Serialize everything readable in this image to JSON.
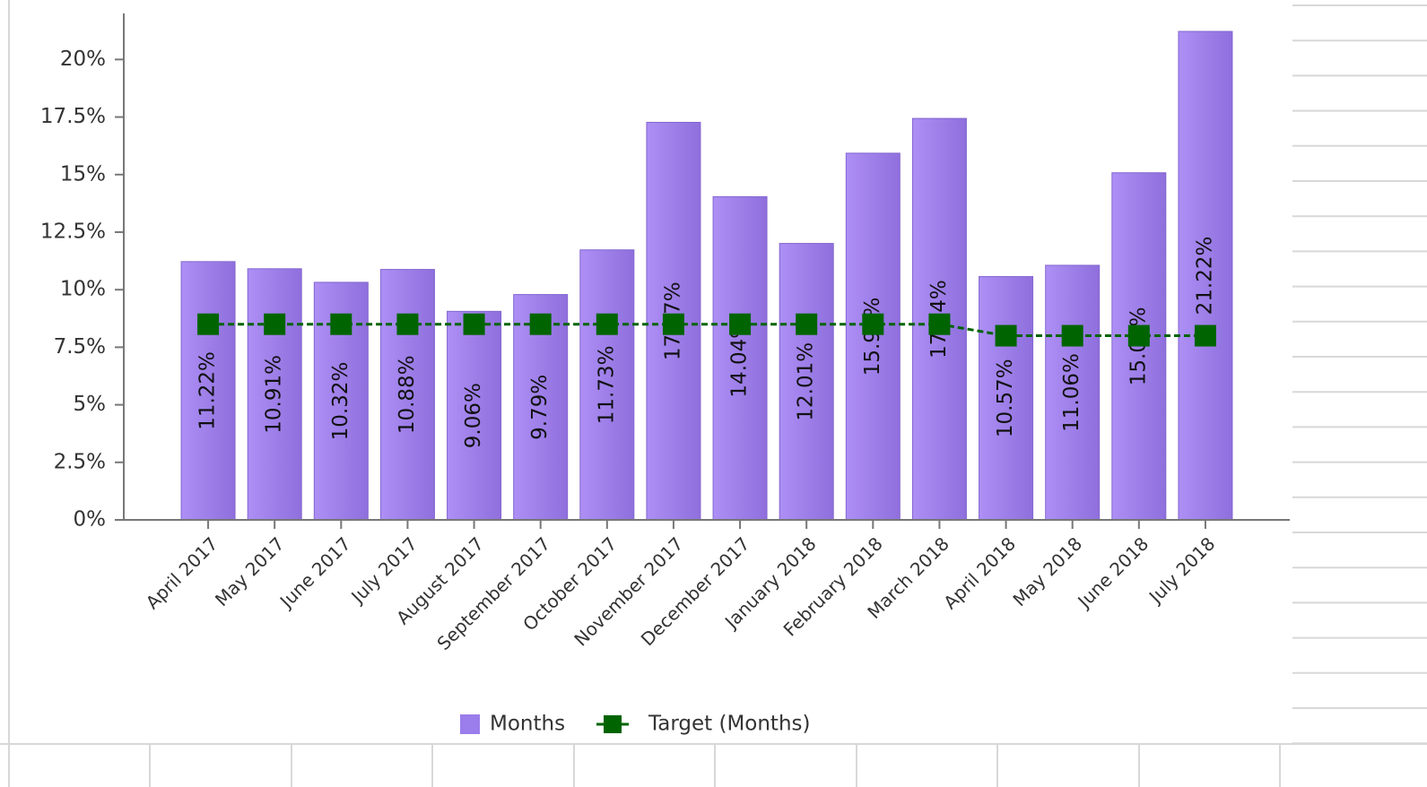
{
  "chart_data": {
    "type": "bar",
    "categories": [
      "April 2017",
      "May 2017",
      "June 2017",
      "July 2017",
      "August 2017",
      "September 2017",
      "October 2017",
      "November 2017",
      "December 2017",
      "January 2018",
      "February 2018",
      "March 2018",
      "April 2018",
      "May 2018",
      "June 2018",
      "July 2018"
    ],
    "series": [
      {
        "name": "Months",
        "type": "bar",
        "color": "#9b7deb",
        "values": [
          11.22,
          10.91,
          10.32,
          10.88,
          9.06,
          9.79,
          11.73,
          17.27,
          14.04,
          12.01,
          15.93,
          17.44,
          10.57,
          11.06,
          15.08,
          21.22
        ],
        "value_labels": [
          "11.22%",
          "10.91%",
          "10.32%",
          "10.88%",
          "9.06%",
          "9.79%",
          "11.73%",
          "17.27%",
          "14.04%",
          "12.01%",
          "15.93%",
          "17.44%",
          "10.57%",
          "11.06%",
          "15.08%",
          "21.22%"
        ]
      },
      {
        "name": "Target (Months)",
        "type": "line",
        "color": "#006400",
        "values": [
          8.5,
          8.5,
          8.5,
          8.5,
          8.5,
          8.5,
          8.5,
          8.5,
          8.5,
          8.5,
          8.5,
          8.5,
          8,
          8,
          8,
          8
        ]
      }
    ],
    "ylim": [
      0,
      22
    ],
    "yticks": [
      {
        "value": 0,
        "label": "0%"
      },
      {
        "value": 2.5,
        "label": "2.5%"
      },
      {
        "value": 5,
        "label": "5%"
      },
      {
        "value": 7.5,
        "label": "7.5%"
      },
      {
        "value": 10,
        "label": "10%"
      },
      {
        "value": 12.5,
        "label": "12.5%"
      },
      {
        "value": 15,
        "label": "15%"
      },
      {
        "value": 17.5,
        "label": "17.5%"
      },
      {
        "value": 20,
        "label": "20%"
      }
    ],
    "grid": false,
    "legend": "bottom"
  }
}
